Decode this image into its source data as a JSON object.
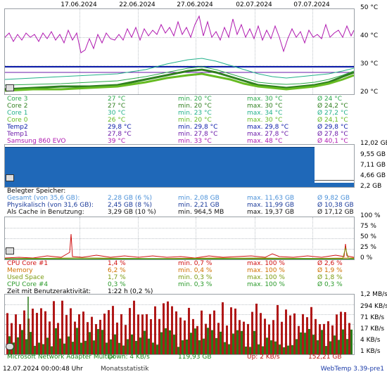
{
  "dates": [
    "17.06.2024",
    "22.06.2024",
    "27.06.2024",
    "02.07.2024",
    "07.07.2024"
  ],
  "temp_axis": [
    "50 °C",
    "40 °C",
    "30 °C",
    "20 °C"
  ],
  "temps": [
    {
      "name": "Core 3",
      "cur": "27 °C",
      "min": "min. 20 °C",
      "max": "max. 30 °C",
      "avg": "Ø 24 °C",
      "color": "#2aa84a"
    },
    {
      "name": "Core 2",
      "cur": "27 °C",
      "min": "min. 20 °C",
      "max": "max. 30 °C",
      "avg": "Ø 24,2 °C",
      "color": "#2f7f1f"
    },
    {
      "name": "Core 1",
      "cur": "30 °C",
      "min": "min. 23 °C",
      "max": "max. 34 °C",
      "avg": "Ø 27,2 °C",
      "color": "#22b08a"
    },
    {
      "name": "Core 0",
      "cur": "26 °C",
      "min": "min. 20 °C",
      "max": "max. 30 °C",
      "avg": "Ø 24,1 °C",
      "color": "#66bb22"
    },
    {
      "name": "Temp2",
      "cur": "29,8 °C",
      "min": "min. 29,8 °C",
      "max": "max. 29,8 °C",
      "avg": "Ø 29,8 °C",
      "color": "#0a1aa8"
    },
    {
      "name": "Temp1",
      "cur": "27,8 °C",
      "min": "min. 27,8 °C",
      "max": "max. 27,8 °C",
      "avg": "Ø 27,8 °C",
      "color": "#6a1aa8"
    },
    {
      "name": "Samsung 860 EVO",
      "cur": "39 °C",
      "min": "min. 33 °C",
      "max": "max. 48 °C",
      "avg": "Ø 40,1 °C",
      "color": "#b01ab0"
    }
  ],
  "mem_axis": [
    "12,02 GB",
    "9,55 GB",
    "7,11 GB",
    "4,66 GB",
    "2,2 GB"
  ],
  "mem_header": "Belegter Speicher:",
  "mem": [
    {
      "name": "Gesamt (von 35,6 GB):",
      "cur": "2,28 GB (6 %)",
      "min": "min. 2,08 GB",
      "max": "max. 11,63 GB",
      "avg": "Ø 9,82 GB",
      "color": "#4a90d8"
    },
    {
      "name": "Physikalisch (von 31,6 GB):",
      "cur": "2,45 GB (8 %)",
      "min": "min. 2,21 GB",
      "max": "max. 11,99 GB",
      "avg": "Ø 10,38 GB",
      "color": "#1a3a9a"
    },
    {
      "name": "Als Cache in Benutzung:",
      "cur": "3,29 GB (10 %)",
      "min": "min. 964,5 MB",
      "max": "max. 19,37 GB",
      "avg": "Ø 17,12 GB",
      "color": "#111111"
    }
  ],
  "cpu_axis": [
    "100 %",
    "75 %",
    "50 %",
    "25 %",
    "0 %"
  ],
  "cpu": [
    {
      "name": "CPU Core #1",
      "cur": "1,4 %",
      "min": "min. 0,7 %",
      "max": "max. 100 %",
      "avg": "Ø 2,6 %",
      "color": "#d01010"
    },
    {
      "name": "Memory",
      "cur": "6,2 %",
      "min": "min. 0,4 %",
      "max": "max. 100 %",
      "avg": "Ø 1,9 %",
      "color": "#d07000"
    },
    {
      "name": "Used Space",
      "cur": "1,7 %",
      "min": "min. 0,3 %",
      "max": "max. 100 %",
      "avg": "Ø 1,8 %",
      "color": "#7a9a10"
    },
    {
      "name": "CPU Core #4",
      "cur": "0,3 %",
      "min": "min. 0,3 %",
      "max": "max. 100 %",
      "avg": "Ø 0,3 %",
      "color": "#2a9a2a"
    }
  ],
  "activity": {
    "label": "Zeit mit Benutzeraktivität:",
    "value": "1:22 h (0,2 %)"
  },
  "net_axis": [
    "1,2 MB/s",
    "294 KB/s",
    "71 KB/s",
    "17 KB/s",
    "4 KB/s",
    "1 KB/s"
  ],
  "net": {
    "adapter": "Microsoft Network Adapter Multipl",
    "down": "Down: 4 KB/s",
    "down_total": "119,93 GB",
    "up": "Up: 2 KB/s",
    "up_total": "152,21 GB"
  },
  "footer": {
    "timestamp": "12.07.2024 00:00:48 Uhr",
    "mode": "Monatsstatistik",
    "version": "WebTemp 3.39-pre1"
  }
}
